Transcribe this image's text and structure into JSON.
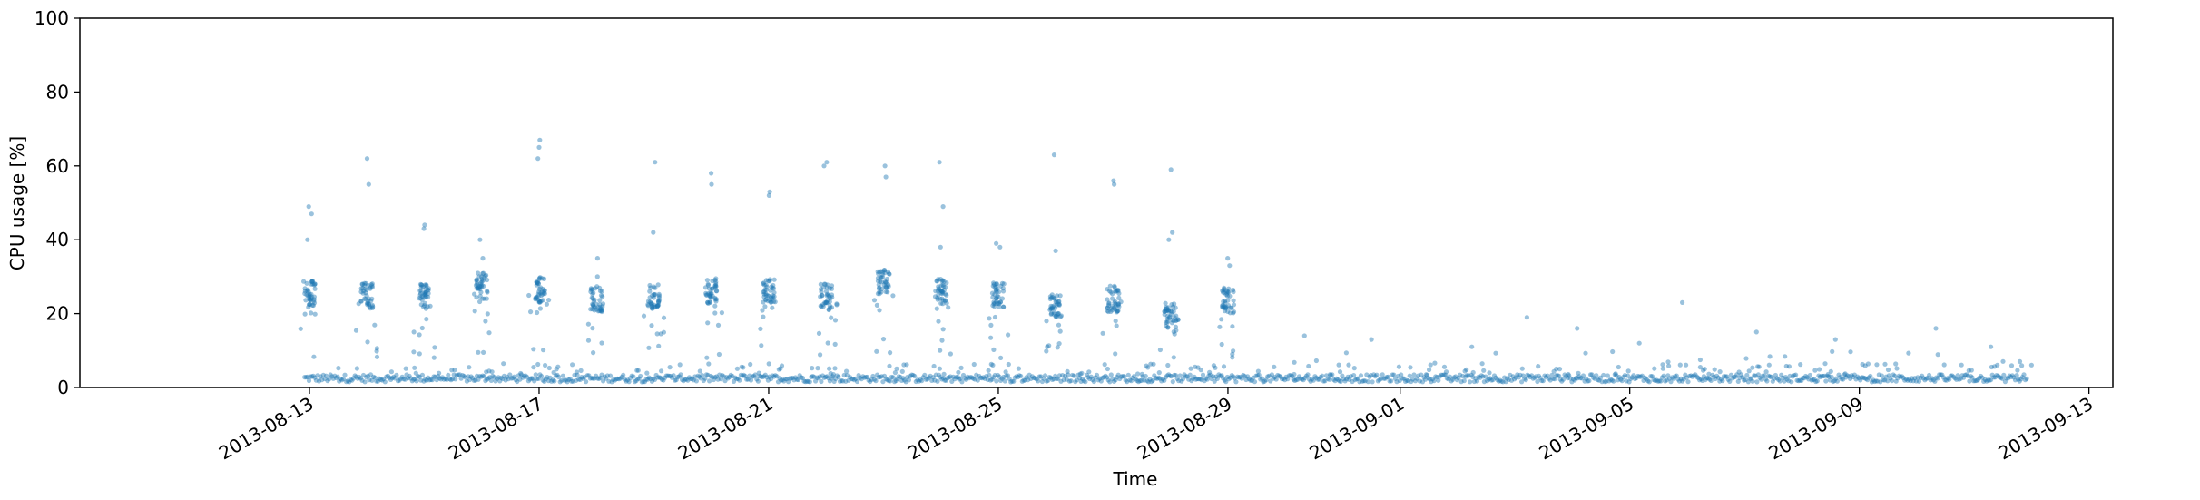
{
  "chart_data": {
    "type": "scatter",
    "title": "",
    "xlabel": "Time",
    "ylabel": "CPU usage [%]",
    "xlim": [
      "2013-08-09T00:00",
      "2013-09-13T10:00"
    ],
    "ylim": [
      0,
      100
    ],
    "y_ticks": [
      "0",
      "20",
      "40",
      "60",
      "80",
      "100"
    ],
    "x_ticks": [
      {
        "date": "2013-08-13",
        "label": "2013-08-13"
      },
      {
        "date": "2013-08-17",
        "label": "2013-08-17"
      },
      {
        "date": "2013-08-21",
        "label": "2013-08-21"
      },
      {
        "date": "2013-08-25",
        "label": "2013-08-25"
      },
      {
        "date": "2013-08-29",
        "label": "2013-08-29"
      },
      {
        "date": "2013-09-01",
        "label": "2013-09-01"
      },
      {
        "date": "2013-09-05",
        "label": "2013-09-05"
      },
      {
        "date": "2013-09-09",
        "label": "2013-09-09"
      },
      {
        "date": "2013-09-13",
        "label": "2013-09-13"
      }
    ],
    "grid": false,
    "series": [
      {
        "name": "CPU usage",
        "color": "#1f77b4",
        "x_start": "2013-08-12T22:00",
        "x_end": "2013-09-11T22:00",
        "baseline_range_pct": [
          1.5,
          3.5
        ],
        "daily_bursts": [
          {
            "day": "2013-08-13",
            "level": 25.5,
            "peaks": [
              49,
              47,
              40
            ]
          },
          {
            "day": "2013-08-14",
            "level": 25.0,
            "peaks": [
              62,
              55
            ]
          },
          {
            "day": "2013-08-15",
            "level": 24.5,
            "peaks": [
              44,
              43
            ]
          },
          {
            "day": "2013-08-16",
            "level": 27.5,
            "peaks": [
              40,
              35
            ]
          },
          {
            "day": "2013-08-17",
            "level": 26.5,
            "peaks": [
              67,
              65,
              62
            ]
          },
          {
            "day": "2013-08-18",
            "level": 24.0,
            "peaks": [
              35,
              30
            ]
          },
          {
            "day": "2013-08-19",
            "level": 24.5,
            "peaks": [
              61,
              42
            ]
          },
          {
            "day": "2013-08-20",
            "level": 26.0,
            "peaks": [
              58,
              55
            ]
          },
          {
            "day": "2013-08-21",
            "level": 26.0,
            "peaks": [
              53,
              52
            ]
          },
          {
            "day": "2013-08-22",
            "level": 24.5,
            "peaks": [
              61,
              60
            ]
          },
          {
            "day": "2013-08-23",
            "level": 28.5,
            "peaks": [
              60,
              57
            ]
          },
          {
            "day": "2013-08-24",
            "level": 26.0,
            "peaks": [
              61,
              49,
              38
            ]
          },
          {
            "day": "2013-08-25",
            "level": 25.0,
            "peaks": [
              39,
              38
            ]
          },
          {
            "day": "2013-08-26",
            "level": 22.0,
            "peaks": [
              63,
              37
            ]
          },
          {
            "day": "2013-08-27",
            "level": 24.0,
            "peaks": [
              56,
              55
            ]
          },
          {
            "day": "2013-08-28",
            "level": 19.5,
            "peaks": [
              59,
              42,
              40
            ]
          },
          {
            "day": "2013-08-29",
            "level": 23.5,
            "peaks": [
              35,
              33
            ]
          }
        ],
        "sporadic_after_2013_08_30": [
          {
            "x": "2013-08-30T08:00",
            "y": 14
          },
          {
            "x": "2013-08-31T12:00",
            "y": 13
          },
          {
            "x": "2013-09-02T06:00",
            "y": 11
          },
          {
            "x": "2013-09-03T05:00",
            "y": 19
          },
          {
            "x": "2013-09-04T02:00",
            "y": 16
          },
          {
            "x": "2013-09-05T04:00",
            "y": 12
          },
          {
            "x": "2013-09-05T22:00",
            "y": 23
          },
          {
            "x": "2013-09-07T05:00",
            "y": 15
          },
          {
            "x": "2013-09-08T14:00",
            "y": 13
          },
          {
            "x": "2013-09-10T08:00",
            "y": 16
          },
          {
            "x": "2013-09-11T07:00",
            "y": 11
          }
        ]
      }
    ]
  }
}
